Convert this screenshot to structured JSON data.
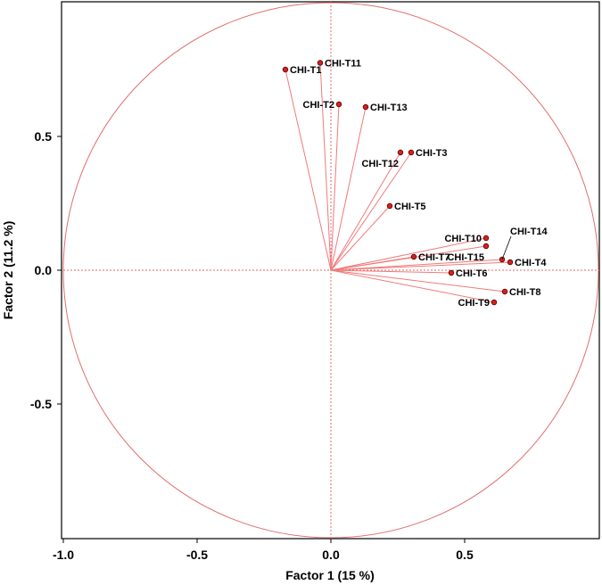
{
  "chart_data": {
    "type": "scatter",
    "xlabel": "Factor 1 (15 %)",
    "ylabel": "Factor 2  (11.2 %)",
    "xlim": [
      -1.0,
      1.0
    ],
    "ylim": [
      -1.0,
      1.0
    ],
    "x_ticks": [
      {
        "value": -1.0,
        "label": "-1.0"
      },
      {
        "value": -0.5,
        "label": "-0.5"
      },
      {
        "value": 0.0,
        "label": "0.0"
      },
      {
        "value": 0.5,
        "label": "0.5"
      }
    ],
    "y_ticks": [
      {
        "value": 0.5,
        "label": "0.5"
      },
      {
        "value": 0.0,
        "label": "0.0"
      },
      {
        "value": -0.5,
        "label": "-0.5"
      }
    ],
    "unit_circle": true,
    "zero_lines": true,
    "points": [
      {
        "label": "CHI-T1",
        "x": -0.17,
        "y": 0.75,
        "label_pos": "right"
      },
      {
        "label": "CHI-T11",
        "x": -0.04,
        "y": 0.775,
        "label_pos": "right"
      },
      {
        "label": "CHI-T2",
        "x": 0.03,
        "y": 0.62,
        "label_pos": "left"
      },
      {
        "label": "CHI-T13",
        "x": 0.13,
        "y": 0.61,
        "label_pos": "right"
      },
      {
        "label": "CHI-T3",
        "x": 0.3,
        "y": 0.44,
        "label_pos": "right"
      },
      {
        "label": "CHI-T12",
        "x": 0.26,
        "y": 0.44,
        "label_pos": "below-left"
      },
      {
        "label": "CHI-T5",
        "x": 0.22,
        "y": 0.24,
        "label_pos": "right"
      },
      {
        "label": "CHI-T10",
        "x": 0.58,
        "y": 0.12,
        "label_pos": "left"
      },
      {
        "label": "CHI-T15",
        "x": 0.58,
        "y": 0.09,
        "label_pos": "below-left"
      },
      {
        "label": "CHI-T14",
        "x": 0.64,
        "y": 0.04,
        "label_pos": "leader-up"
      },
      {
        "label": "CHI-T4",
        "x": 0.67,
        "y": 0.03,
        "label_pos": "right"
      },
      {
        "label": "CHI-T7",
        "x": 0.31,
        "y": 0.05,
        "label_pos": "right"
      },
      {
        "label": "CHI-T6",
        "x": 0.45,
        "y": -0.01,
        "label_pos": "right"
      },
      {
        "label": "CHI-T8",
        "x": 0.65,
        "y": -0.08,
        "label_pos": "right"
      },
      {
        "label": "CHI-T9",
        "x": 0.61,
        "y": -0.12,
        "label_pos": "left"
      }
    ],
    "colors": {
      "circle": "#e06f6f",
      "vectors": "#f07a7a",
      "points": "#d62020"
    }
  }
}
